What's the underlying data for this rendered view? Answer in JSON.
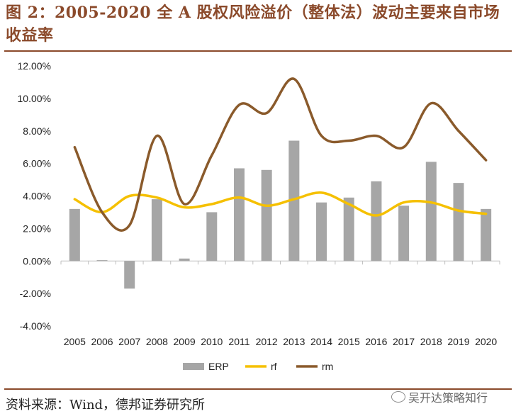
{
  "title": "图 2：2005-2020 全 A 股权风险溢价（整体法）波动主要来自市场收益率",
  "source": "资料来源：Wind，德邦证券研究所",
  "watermark": "吴开达策略知行",
  "colors": {
    "erp": "#a6a6a6",
    "rf": "#f5c000",
    "rm": "#8a5a2b",
    "title": "#8b4a2b"
  },
  "chart_data": {
    "type": "bar+line",
    "categories": [
      "2005",
      "2006",
      "2007",
      "2008",
      "2009",
      "2010",
      "2011",
      "2012",
      "2013",
      "2014",
      "2015",
      "2016",
      "2017",
      "2018",
      "2019",
      "2020"
    ],
    "series": [
      {
        "name": "ERP",
        "kind": "bar",
        "values": [
          3.2,
          0.05,
          -1.7,
          3.8,
          0.15,
          3.0,
          5.7,
          5.6,
          7.4,
          3.6,
          3.9,
          4.9,
          3.4,
          6.1,
          4.8,
          3.2
        ]
      },
      {
        "name": "rf",
        "kind": "line",
        "values": [
          3.8,
          3.0,
          4.0,
          3.9,
          3.3,
          3.5,
          3.9,
          3.4,
          3.8,
          4.2,
          3.5,
          2.8,
          3.6,
          3.6,
          3.1,
          2.9
        ]
      },
      {
        "name": "rm",
        "kind": "line",
        "values": [
          7.0,
          3.0,
          2.2,
          7.7,
          3.5,
          6.5,
          9.6,
          9.1,
          11.2,
          7.7,
          7.4,
          7.7,
          7.0,
          9.7,
          8.0,
          6.2
        ]
      }
    ],
    "yticks": [
      "12.00%",
      "10.00%",
      "8.00%",
      "6.00%",
      "4.00%",
      "2.00%",
      "0.00%",
      "-2.00%",
      "-4.00%"
    ],
    "ytick_values": [
      12,
      10,
      8,
      6,
      4,
      2,
      0,
      -2,
      -4
    ],
    "ylim": [
      -4,
      12
    ],
    "legend": [
      "ERP",
      "rf",
      "rm"
    ],
    "legend_position": "bottom",
    "grid": false
  }
}
